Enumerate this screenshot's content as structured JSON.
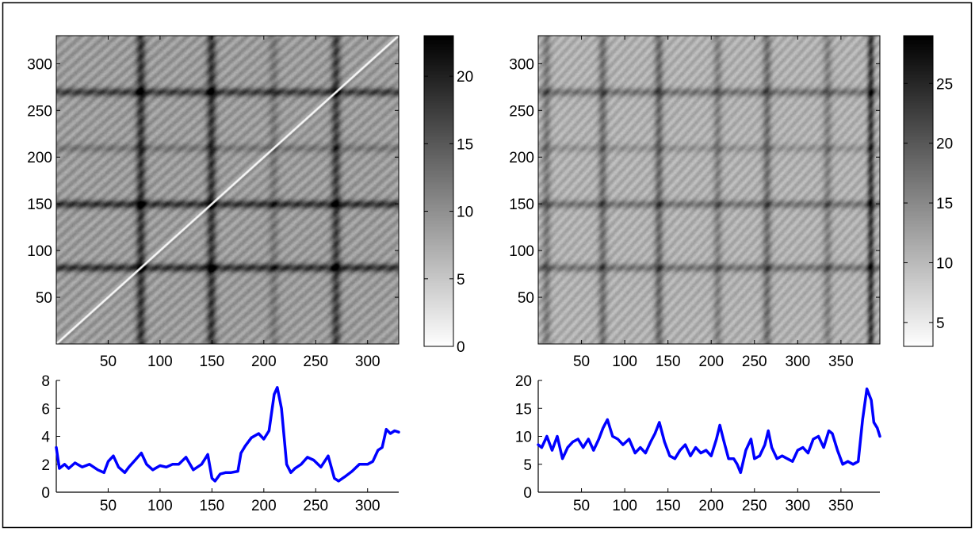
{
  "chart_data": [
    {
      "type": "heatmap",
      "title": "",
      "xlabel": "",
      "ylabel": "",
      "n": 330,
      "xlim": [
        0,
        330
      ],
      "ylim": [
        0,
        330
      ],
      "xticks": [
        50,
        100,
        150,
        200,
        250,
        300
      ],
      "yticks": [
        50,
        100,
        150,
        200,
        250,
        300
      ],
      "color_scale": "gray (white = low, black = high)",
      "colorbar": {
        "min": 0,
        "max": 23,
        "ticks": [
          0,
          5,
          10,
          15,
          20
        ]
      },
      "bands": [
        82,
        150,
        210,
        270
      ],
      "band_strength": [
        1.0,
        1.0,
        0.35,
        0.9
      ],
      "diagonal_line": true,
      "base_level": 9
    },
    {
      "type": "heatmap",
      "title": "",
      "xlabel": "",
      "ylabel": "",
      "n": 395,
      "xlim": [
        0,
        395
      ],
      "ylim": [
        0,
        330
      ],
      "xticks": [
        50,
        100,
        150,
        200,
        250,
        300,
        350
      ],
      "yticks": [
        50,
        100,
        150,
        200,
        250,
        300
      ],
      "color_scale": "gray (white = low, black = high)",
      "colorbar": {
        "min": 3,
        "max": 29,
        "ticks": [
          5,
          10,
          15,
          20,
          25
        ]
      },
      "col_bands": [
        10,
        75,
        140,
        208,
        265,
        335,
        385
      ],
      "col_band_strength": [
        0.45,
        0.55,
        0.6,
        0.4,
        0.55,
        0.4,
        1.0
      ],
      "row_bands": [
        82,
        150,
        210,
        270
      ],
      "row_band_strength": [
        0.6,
        0.6,
        0.3,
        0.6
      ],
      "diagonal_line": false,
      "base_level": 11
    },
    {
      "type": "line",
      "title": "",
      "xlabel": "",
      "ylabel": "",
      "color": "#0000ff",
      "xlim": [
        0,
        330
      ],
      "ylim": [
        0,
        8
      ],
      "xticks": [
        50,
        100,
        150,
        200,
        250,
        300
      ],
      "yticks": [
        0,
        2,
        4,
        6,
        8
      ],
      "x": [
        0,
        3,
        8,
        12,
        18,
        25,
        32,
        40,
        46,
        50,
        55,
        60,
        66,
        70,
        76,
        82,
        87,
        93,
        100,
        106,
        112,
        118,
        125,
        132,
        140,
        146,
        150,
        153,
        158,
        163,
        168,
        175,
        178,
        182,
        188,
        195,
        200,
        205,
        210,
        213,
        217,
        222,
        226,
        230,
        236,
        242,
        248,
        255,
        262,
        268,
        272,
        278,
        285,
        292,
        300,
        305,
        310,
        314,
        318,
        322,
        326,
        330
      ],
      "y": [
        3.2,
        1.7,
        2.0,
        1.7,
        2.1,
        1.8,
        2.0,
        1.6,
        1.4,
        2.2,
        2.6,
        1.8,
        1.4,
        1.8,
        2.3,
        2.8,
        2.0,
        1.6,
        1.9,
        1.8,
        2.0,
        2.0,
        2.5,
        1.6,
        2.0,
        2.7,
        1.0,
        0.8,
        1.3,
        1.4,
        1.4,
        1.5,
        2.8,
        3.3,
        3.9,
        4.2,
        3.8,
        4.4,
        7.0,
        7.5,
        6.0,
        2.0,
        1.4,
        1.7,
        2.0,
        2.5,
        2.3,
        1.8,
        2.6,
        1.0,
        0.8,
        1.1,
        1.5,
        2.0,
        2.0,
        2.2,
        3.0,
        3.2,
        4.5,
        4.2,
        4.4,
        4.3
      ]
    },
    {
      "type": "line",
      "title": "",
      "xlabel": "",
      "ylabel": "",
      "color": "#0000ff",
      "xlim": [
        0,
        395
      ],
      "ylim": [
        0,
        20
      ],
      "xticks": [
        50,
        100,
        150,
        200,
        250,
        300,
        350
      ],
      "yticks": [
        0,
        5,
        10,
        15,
        20
      ],
      "x": [
        0,
        4,
        10,
        16,
        22,
        28,
        34,
        40,
        46,
        52,
        58,
        64,
        70,
        75,
        80,
        86,
        92,
        98,
        105,
        112,
        118,
        124,
        130,
        135,
        140,
        146,
        152,
        158,
        164,
        170,
        176,
        182,
        188,
        194,
        200,
        206,
        210,
        214,
        220,
        226,
        230,
        234,
        240,
        246,
        250,
        256,
        262,
        266,
        270,
        276,
        282,
        288,
        294,
        300,
        306,
        312,
        318,
        324,
        330,
        336,
        340,
        346,
        352,
        358,
        364,
        370,
        375,
        380,
        385,
        388,
        392,
        395
      ],
      "y": [
        8.5,
        8.0,
        10.0,
        7.5,
        10.0,
        6.0,
        8.0,
        9.0,
        9.5,
        8.0,
        9.5,
        7.5,
        9.5,
        11.5,
        13.0,
        10.0,
        9.5,
        8.5,
        9.5,
        7.0,
        8.0,
        7.0,
        9.0,
        10.5,
        12.5,
        9.0,
        6.5,
        6.0,
        7.5,
        8.5,
        6.5,
        8.0,
        7.0,
        7.5,
        6.5,
        9.5,
        12.0,
        9.5,
        6.0,
        6.0,
        5.0,
        3.5,
        7.5,
        9.5,
        6.0,
        6.5,
        8.5,
        11.0,
        8.0,
        6.0,
        6.5,
        6.0,
        5.5,
        7.5,
        8.0,
        7.0,
        9.5,
        10.0,
        8.0,
        11.0,
        10.5,
        7.5,
        5.0,
        5.5,
        5.0,
        5.5,
        13.0,
        18.5,
        16.5,
        12.5,
        11.5,
        10.0
      ]
    }
  ]
}
